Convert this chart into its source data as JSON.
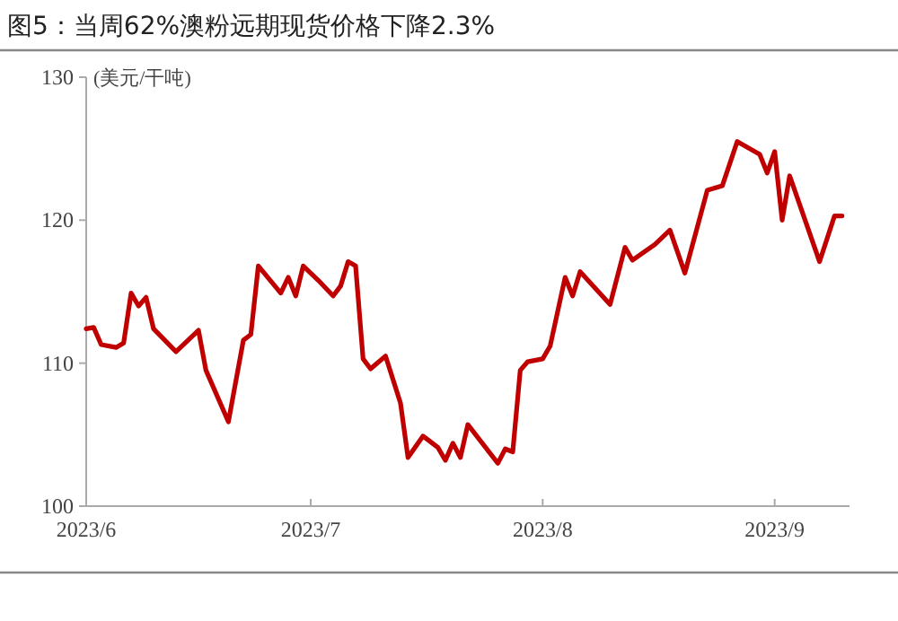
{
  "chart_data": {
    "type": "line",
    "title": "图5：当周62%澳粉远期现货价格下降2.3%",
    "ylabel": "(美元/干吨)",
    "x": [
      "2023-06-01",
      "2023-06-02",
      "2023-06-03",
      "2023-06-05",
      "2023-06-06",
      "2023-06-07",
      "2023-06-08",
      "2023-06-09",
      "2023-06-10",
      "2023-06-13",
      "2023-06-16",
      "2023-06-17",
      "2023-06-20",
      "2023-06-22",
      "2023-06-23",
      "2023-06-24",
      "2023-06-27",
      "2023-06-28",
      "2023-06-29",
      "2023-06-30",
      "2023-07-02",
      "2023-07-04",
      "2023-07-05",
      "2023-07-06",
      "2023-07-07",
      "2023-07-08",
      "2023-07-09",
      "2023-07-11",
      "2023-07-13",
      "2023-07-14",
      "2023-07-16",
      "2023-07-18",
      "2023-07-19",
      "2023-07-20",
      "2023-07-21",
      "2023-07-22",
      "2023-07-26",
      "2023-07-27",
      "2023-07-28",
      "2023-07-29",
      "2023-07-30",
      "2023-08-01",
      "2023-08-02",
      "2023-08-04",
      "2023-08-05",
      "2023-08-06",
      "2023-08-10",
      "2023-08-12",
      "2023-08-13",
      "2023-08-16",
      "2023-08-18",
      "2023-08-20",
      "2023-08-23",
      "2023-08-25",
      "2023-08-27",
      "2023-08-30",
      "2023-08-31",
      "2023-09-01",
      "2023-09-02",
      "2023-09-03",
      "2023-09-07",
      "2023-09-09",
      "2023-09-10"
    ],
    "series": [
      {
        "color": "#c00000",
        "values": [
          112.4,
          112.5,
          111.3,
          111.1,
          111.4,
          114.9,
          114.0,
          114.6,
          112.4,
          110.8,
          112.3,
          109.5,
          105.9,
          111.6,
          112.0,
          116.8,
          114.9,
          116.0,
          114.7,
          116.8,
          115.8,
          114.7,
          115.4,
          117.1,
          116.8,
          110.3,
          109.6,
          110.5,
          107.2,
          103.4,
          104.9,
          104.1,
          103.2,
          104.4,
          103.4,
          105.7,
          103.0,
          104.0,
          103.8,
          109.5,
          110.1,
          110.3,
          111.2,
          116.0,
          114.7,
          116.4,
          114.1,
          118.1,
          117.2,
          118.3,
          119.3,
          116.3,
          122.1,
          122.4,
          125.5,
          124.6,
          123.3,
          124.8,
          120.0,
          123.1,
          117.1,
          120.3,
          120.3
        ]
      }
    ],
    "xlim": [
      "2023-06-01",
      "2023-09-11"
    ],
    "xticks": [
      {
        "value": "2023-06-01",
        "label": "2023/6"
      },
      {
        "value": "2023-07-01",
        "label": "2023/7"
      },
      {
        "value": "2023-08-01",
        "label": "2023/8"
      },
      {
        "value": "2023-09-01",
        "label": "2023/9"
      }
    ],
    "ylim": [
      100,
      130
    ],
    "yticks": [
      100,
      110,
      120,
      130
    ],
    "grid": false,
    "marker": "none",
    "line_style": "solid"
  }
}
